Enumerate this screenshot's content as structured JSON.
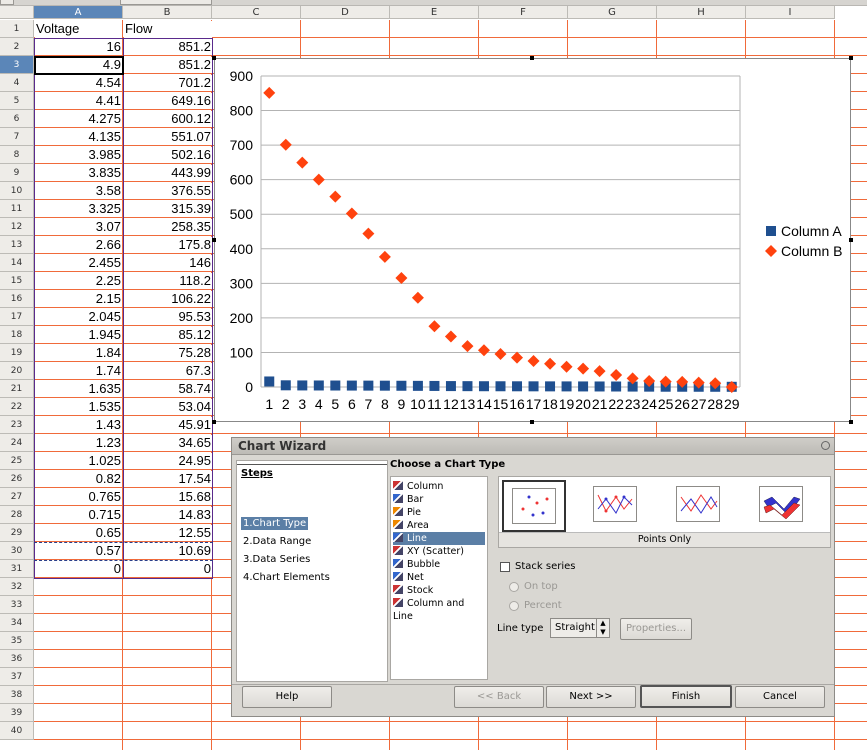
{
  "columns": [
    "A",
    "B",
    "C",
    "D",
    "E",
    "F",
    "G",
    "H",
    "I"
  ],
  "rows": [
    "1",
    "2",
    "3",
    "4",
    "5",
    "6",
    "7",
    "8",
    "9",
    "10",
    "11",
    "12",
    "13",
    "14",
    "15",
    "16",
    "17",
    "18",
    "19",
    "20",
    "21",
    "22",
    "23",
    "24",
    "25",
    "26",
    "27",
    "28",
    "29",
    "30",
    "31",
    "32",
    "33",
    "34",
    "35",
    "36",
    "37",
    "38",
    "39",
    "40"
  ],
  "headers": {
    "a": "Voltage",
    "b": "Flow"
  },
  "col_a": [
    "16",
    "4.9",
    "4.54",
    "4.41",
    "4.275",
    "4.135",
    "3.985",
    "3.835",
    "3.58",
    "3.325",
    "3.07",
    "2.66",
    "2.455",
    "2.25",
    "2.15",
    "2.045",
    "1.945",
    "1.84",
    "1.74",
    "1.635",
    "1.535",
    "1.43",
    "1.23",
    "1.025",
    "0.82",
    "0.765",
    "0.715",
    "0.65",
    "0.57",
    "0"
  ],
  "col_b": [
    "851.2",
    "851.2",
    "701.2",
    "649.16",
    "600.12",
    "551.07",
    "502.16",
    "443.99",
    "376.55",
    "315.39",
    "258.35",
    "175.8",
    "146",
    "118.2",
    "106.22",
    "95.53",
    "85.12",
    "75.28",
    "67.3",
    "58.74",
    "53.04",
    "45.91",
    "34.65",
    "24.95",
    "17.54",
    "15.68",
    "14.83",
    "12.55",
    "10.69",
    "0"
  ],
  "colors": {
    "grid": "#f06a3a",
    "series_a": "#1f4f8f",
    "series_b": "#ff420e",
    "selected_header": "#5b86b8"
  },
  "chart_data": {
    "type": "scatter",
    "x": [
      1,
      2,
      3,
      4,
      5,
      6,
      7,
      8,
      9,
      10,
      11,
      12,
      13,
      14,
      15,
      16,
      17,
      18,
      19,
      20,
      21,
      22,
      23,
      24,
      25,
      26,
      27,
      28,
      29
    ],
    "xticks": [
      "1",
      "2",
      "3",
      "4",
      "5",
      "6",
      "7",
      "8",
      "9",
      "10",
      "11",
      "12",
      "13",
      "14",
      "15",
      "16",
      "17",
      "18",
      "19",
      "20",
      "21",
      "22",
      "23",
      "24",
      "25",
      "26",
      "27",
      "28",
      "29"
    ],
    "yticks": [
      "0",
      "100",
      "200",
      "300",
      "400",
      "500",
      "600",
      "700",
      "800",
      "900"
    ],
    "ylim": [
      0,
      900
    ],
    "grid": true,
    "legend_position": "right",
    "series": [
      {
        "name": "Column A",
        "marker": "square",
        "values": [
          16,
          4.9,
          4.54,
          4.41,
          4.275,
          4.135,
          3.985,
          3.835,
          3.58,
          3.325,
          3.07,
          2.66,
          2.455,
          2.25,
          2.15,
          2.045,
          1.945,
          1.84,
          1.74,
          1.635,
          1.535,
          1.43,
          1.23,
          1.025,
          0.82,
          0.765,
          0.715,
          0.65,
          0.57
        ]
      },
      {
        "name": "Column B",
        "marker": "diamond",
        "values": [
          851.2,
          701.2,
          649.16,
          600.12,
          551.07,
          502.16,
          443.99,
          376.55,
          315.39,
          258.35,
          175.8,
          146,
          118.2,
          106.22,
          95.53,
          85.12,
          75.28,
          67.3,
          58.74,
          53.04,
          45.91,
          34.65,
          24.95,
          17.54,
          15.68,
          14.83,
          12.55,
          10.69,
          0
        ]
      }
    ]
  },
  "wizard": {
    "title": "Chart Wizard",
    "steps_title": "Steps",
    "steps": [
      "1.Chart Type",
      "2.Data Range",
      "3.Data Series",
      "4.Chart Elements"
    ],
    "choose_title": "Choose a Chart Type",
    "types": [
      {
        "label": "Column",
        "icon": "column-chart-icon"
      },
      {
        "label": "Bar",
        "icon": "bar-chart-icon"
      },
      {
        "label": "Pie",
        "icon": "pie-chart-icon"
      },
      {
        "label": "Area",
        "icon": "area-chart-icon"
      },
      {
        "label": "Line",
        "icon": "line-chart-icon"
      },
      {
        "label": "XY (Scatter)",
        "icon": "scatter-chart-icon"
      },
      {
        "label": "Bubble",
        "icon": "bubble-chart-icon"
      },
      {
        "label": "Net",
        "icon": "net-chart-icon"
      },
      {
        "label": "Stock",
        "icon": "stock-chart-icon"
      },
      {
        "label": "Column and Line",
        "icon": "column-line-chart-icon"
      }
    ],
    "selected_type": "Line",
    "variant_caption": "Points Only",
    "stack_label": "Stack series",
    "on_top": "On top",
    "percent": "Percent",
    "line_type_label": "Line type",
    "line_type_value": "Straight",
    "properties_label": "Properties...",
    "help": "Help",
    "back": "<< Back",
    "next": "Next >>",
    "finish": "Finish",
    "cancel": "Cancel"
  }
}
